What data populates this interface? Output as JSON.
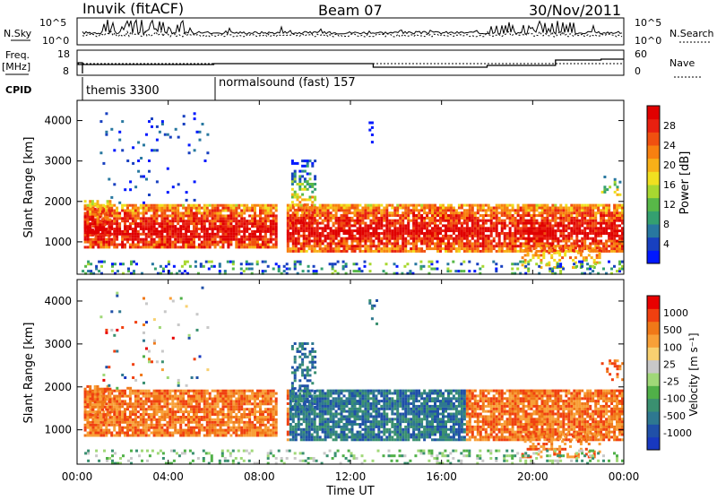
{
  "header": {
    "station": "Inuvik (fitACF)",
    "beam": "Beam 07",
    "date": "30/Nov/2011"
  },
  "top_panels": {
    "nsky_label": "N.Sky",
    "nsky_ticks": [
      "10^5",
      "10^0"
    ],
    "nsearch_label": "N.Search",
    "nsearch_ticks": [
      "10^5",
      "10^0"
    ],
    "freq_label_line1": "Freq.",
    "freq_label_line2": "[MHz]",
    "freq_ticks": [
      "18",
      "8"
    ],
    "nave_label": "Nave",
    "nave_ticks": [
      "60",
      "0"
    ],
    "cpid_label": "CPID",
    "cpid_segments": [
      {
        "label": "themis 3300",
        "start_hour": 0
      },
      {
        "label": "normalsound (fast) 157",
        "start_hour": 6
      }
    ]
  },
  "chart_data": [
    {
      "type": "heatmap",
      "name": "power-panel",
      "ylabel": "Slant Range [km]",
      "xlim_hours": [
        0,
        24
      ],
      "ylim": [
        200,
        4500
      ],
      "yticks": [
        1000,
        2000,
        3000,
        4000
      ],
      "colorbar": {
        "label": "Power [dB]",
        "ticks": [
          "28",
          "24",
          "20",
          "16",
          "12",
          "8",
          "4"
        ],
        "colors": [
          "#0018ff",
          "#1840c0",
          "#2878a0",
          "#34a070",
          "#58b848",
          "#a8d830",
          "#f0e020",
          "#f8b018",
          "#f88010",
          "#f05010",
          "#e82010",
          "#e00000"
        ]
      }
    },
    {
      "type": "heatmap",
      "name": "velocity-panel",
      "ylabel": "Slant Range [km]",
      "xlabel": "Time UT",
      "xlim_hours": [
        0,
        24
      ],
      "ylim": [
        200,
        4500
      ],
      "yticks": [
        1000,
        2000,
        3000,
        4000
      ],
      "xticks": [
        "00:00",
        "04:00",
        "08:00",
        "12:00",
        "16:00",
        "20:00",
        "00:00"
      ],
      "colorbar": {
        "label": "Velocity [m s⁻¹]",
        "ticks": [
          "1000",
          "500",
          "100",
          "25",
          "-25",
          "-100",
          "-500",
          "-1000"
        ],
        "colors": [
          "#1838c0",
          "#2050a8",
          "#2e7890",
          "#3a9070",
          "#50b048",
          "#a0d878",
          "#c8c8c8",
          "#f8d070",
          "#f8a038",
          "#f07818",
          "#f04010",
          "#e80000"
        ]
      }
    }
  ]
}
